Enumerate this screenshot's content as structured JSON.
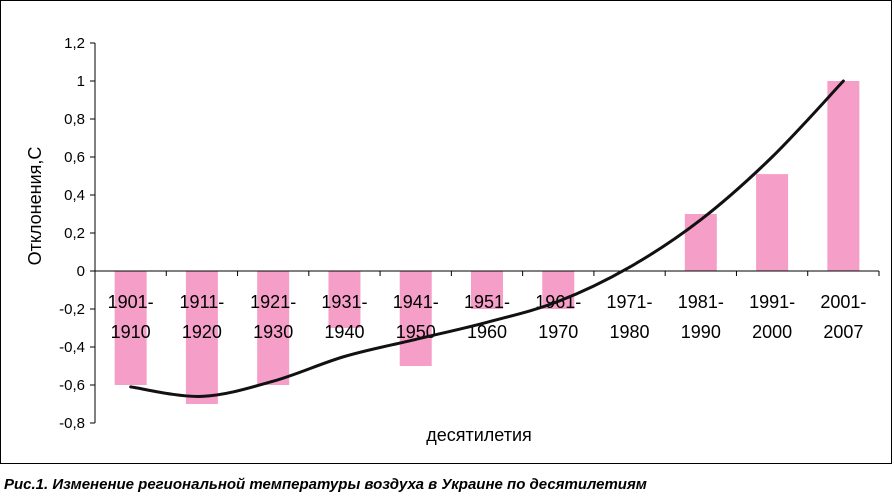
{
  "chart_data": {
    "type": "bar",
    "categories": [
      [
        "1901-",
        "1910"
      ],
      [
        "1911-",
        "1920"
      ],
      [
        "1921-",
        "1930"
      ],
      [
        "1931-",
        "1940"
      ],
      [
        "1941-",
        "1950"
      ],
      [
        "1951-",
        "1960"
      ],
      [
        "1961-",
        "1970"
      ],
      [
        "1971-",
        "1980"
      ],
      [
        "1981-",
        "1990"
      ],
      [
        "1991-",
        "2000"
      ],
      [
        "2001-",
        "2007"
      ]
    ],
    "values": [
      -0.6,
      -0.7,
      -0.6,
      -0.3,
      -0.5,
      -0.2,
      -0.2,
      0.0,
      0.3,
      0.51,
      1.0
    ],
    "trend": [
      -0.61,
      -0.66,
      -0.58,
      -0.45,
      -0.36,
      -0.27,
      -0.16,
      0.02,
      0.27,
      0.6,
      1.0
    ],
    "ylabel": "Отклонения,С",
    "xlabel": "десятилетия",
    "ylim": [
      -0.8,
      1.2
    ],
    "ytick_values": [
      -0.8,
      -0.6,
      -0.4,
      -0.2,
      0,
      0.2,
      0.4,
      0.6,
      0.8,
      1,
      1.2
    ],
    "ytick_labels": [
      "-0,8",
      "-0,6",
      "-0,4",
      "-0,2",
      "0",
      "0,2",
      "0,4",
      "0,6",
      "0,8",
      "1",
      "1,2"
    ],
    "grid": false,
    "bar_color": "#f59fc8",
    "trend_color": "#111111"
  },
  "caption": "Рис.1.  Изменение региональной температуры воздуха  в Украине по десятилетиям"
}
